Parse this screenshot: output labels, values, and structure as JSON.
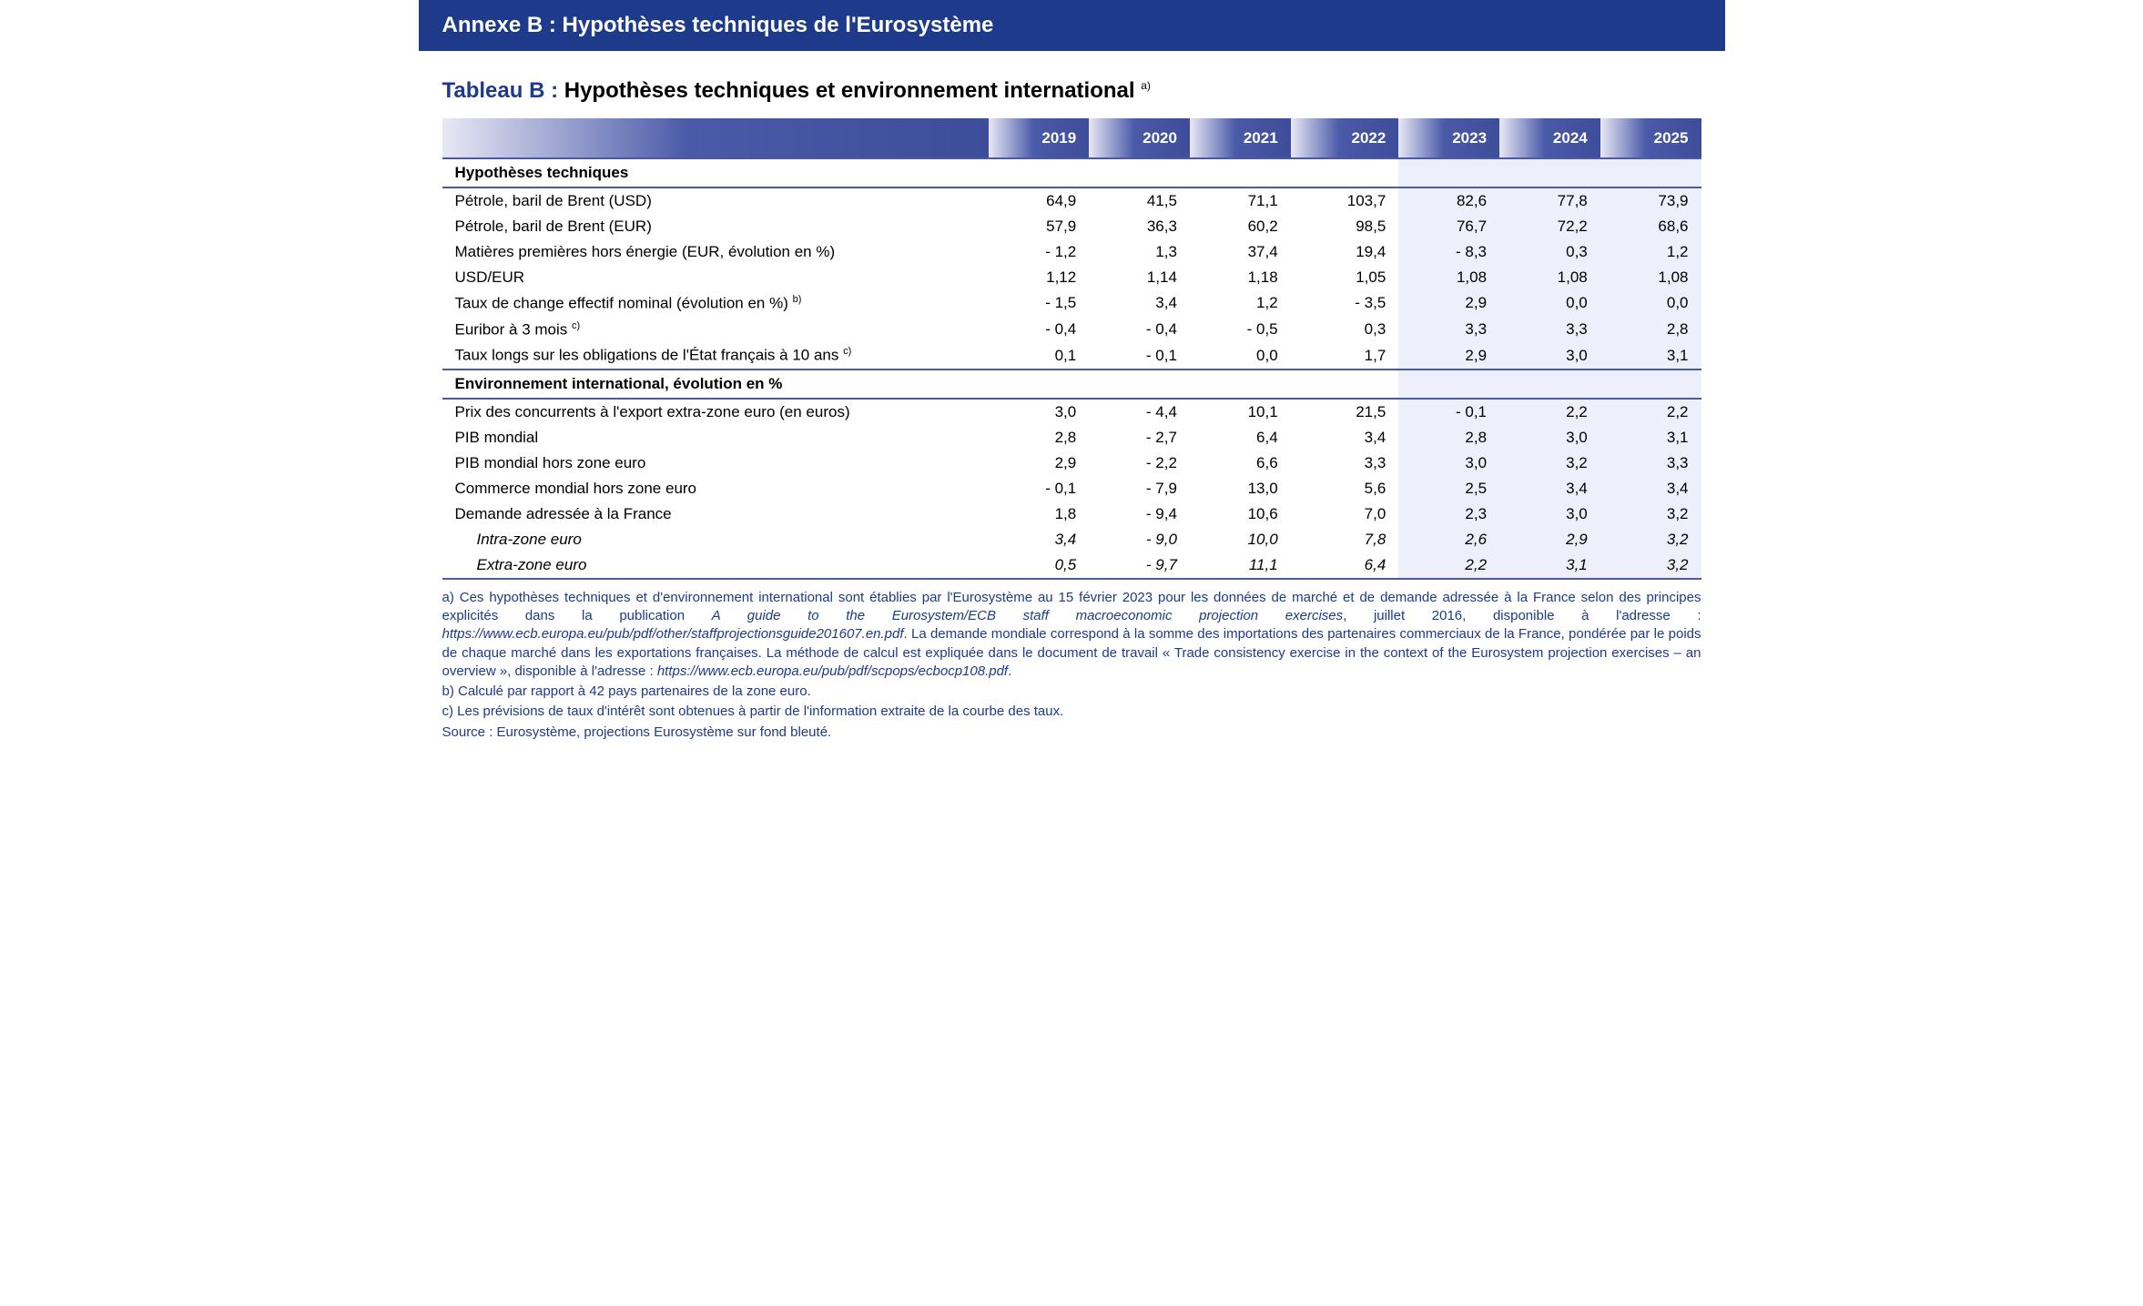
{
  "banner": "Annexe B : Hypothèses techniques de l'Eurosystème",
  "table": {
    "title_prefix": "Tableau B : ",
    "title_rest": "Hypothèses techniques et environnement international",
    "title_sup": "a)",
    "years": [
      "2019",
      "2020",
      "2021",
      "2022",
      "2023",
      "2024",
      "2025"
    ],
    "projection_start_index": 4,
    "colors": {
      "banner_bg": "#1e3a8a",
      "header_grad_from": "#e8e8f5",
      "header_grad_to": "#3d4d99",
      "section_border": "#4a5aa8",
      "projection_bg": "#edf0fa",
      "footnote_text": "#1e3a8a"
    },
    "sections": [
      {
        "label": "Hypothèses techniques",
        "rows": [
          {
            "label": "Pétrole, baril de Brent (USD)",
            "values": [
              "64,9",
              "41,5",
              "71,1",
              "103,7",
              "82,6",
              "77,8",
              "73,9"
            ]
          },
          {
            "label": "Pétrole, baril de Brent (EUR)",
            "values": [
              "57,9",
              "36,3",
              "60,2",
              "98,5",
              "76,7",
              "72,2",
              "68,6"
            ]
          },
          {
            "label": "Matières premières hors énergie (EUR, évolution en %)",
            "values": [
              "- 1,2",
              "1,3",
              "37,4",
              "19,4",
              "- 8,3",
              "0,3",
              "1,2"
            ]
          },
          {
            "label": "USD/EUR",
            "values": [
              "1,12",
              "1,14",
              "1,18",
              "1,05",
              "1,08",
              "1,08",
              "1,08"
            ]
          },
          {
            "label": "Taux de change effectif nominal (évolution en %)",
            "sup": "b)",
            "values": [
              "- 1,5",
              "3,4",
              "1,2",
              "- 3,5",
              "2,9",
              "0,0",
              "0,0"
            ]
          },
          {
            "label": "Euribor à 3 mois",
            "sup": "c)",
            "values": [
              "- 0,4",
              "- 0,4",
              "- 0,5",
              "0,3",
              "3,3",
              "3,3",
              "2,8"
            ]
          },
          {
            "label": "Taux longs sur les obligations de l'État français à 10 ans",
            "sup": "c)",
            "values": [
              "0,1",
              "- 0,1",
              "0,0",
              "1,7",
              "2,9",
              "3,0",
              "3,1"
            ]
          }
        ]
      },
      {
        "label": "Environnement international, évolution en %",
        "rows": [
          {
            "label": "Prix des concurrents à l'export extra-zone euro (en euros)",
            "values": [
              "3,0",
              "- 4,4",
              "10,1",
              "21,5",
              "- 0,1",
              "2,2",
              "2,2"
            ]
          },
          {
            "label": "PIB mondial",
            "values": [
              "2,8",
              "- 2,7",
              "6,4",
              "3,4",
              "2,8",
              "3,0",
              "3,1"
            ]
          },
          {
            "label": "PIB mondial hors zone euro",
            "values": [
              "2,9",
              "- 2,2",
              "6,6",
              "3,3",
              "3,0",
              "3,2",
              "3,3"
            ]
          },
          {
            "label": "Commerce mondial hors zone euro",
            "values": [
              "- 0,1",
              "- 7,9",
              "13,0",
              "5,6",
              "2,5",
              "3,4",
              "3,4"
            ]
          },
          {
            "label": "Demande adressée à la France",
            "values": [
              "1,8",
              "- 9,4",
              "10,6",
              "7,0",
              "2,3",
              "3,0",
              "3,2"
            ]
          },
          {
            "label": "Intra-zone euro",
            "italic": true,
            "values": [
              "3,4",
              "- 9,0",
              "10,0",
              "7,8",
              "2,6",
              "2,9",
              "3,2"
            ]
          },
          {
            "label": "Extra-zone euro",
            "italic": true,
            "values": [
              "0,5",
              "- 9,7",
              "11,1",
              "6,4",
              "2,2",
              "3,1",
              "3,2"
            ]
          }
        ]
      }
    ]
  },
  "footnotes": {
    "a_pre": "a)  Ces hypothèses techniques et d'environnement international sont établies par l'Eurosystème au 15 février 2023 pour les données de marché et de demande adressée à la France selon des principes explicités dans la publication ",
    "a_ital1": "A guide to the Eurosystem/ECB staff macroeconomic projection exercises",
    "a_mid1": ", juillet 2016, disponible à l'adresse : ",
    "a_ital2": "https://www.ecb.europa.eu/pub/pdf/other/staffprojectionsguide201607.en.pdf",
    "a_mid2": ". La demande mondiale correspond à la somme des importations des partenaires commerciaux de la France, pondérée par le poids de chaque marché dans les exportations françaises. La méthode de calcul est expliquée dans le document de travail « Trade consistency exercise in the context of the Eurosystem projection exercises – an overview », disponible à l'adresse : ",
    "a_ital3": "https://www.ecb.europa.eu/pub/pdf/scpops/ecbocp108.pdf",
    "a_post": ".",
    "b": "b)  Calculé par rapport à 42 pays partenaires de la zone euro.",
    "c": "c)  Les prévisions de taux d'intérêt sont obtenues à partir de l'information extraite de la courbe des taux.",
    "source": "Source : Eurosystème, projections Eurosystème sur fond bleuté."
  }
}
